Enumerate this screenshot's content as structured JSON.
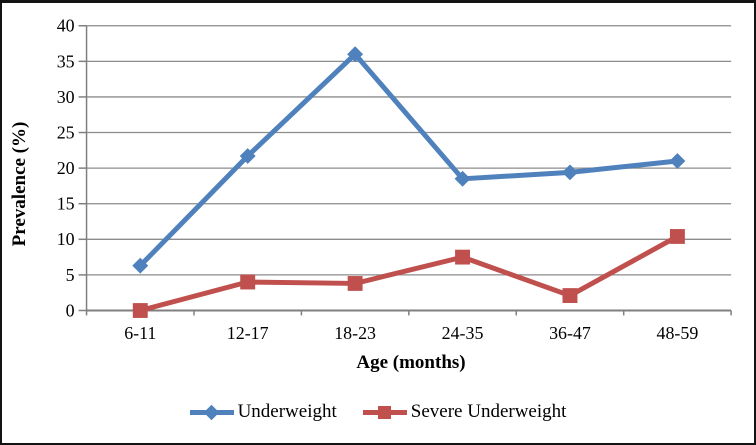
{
  "chart_data": {
    "type": "line",
    "title": "",
    "categories": [
      "6-11",
      "12-17",
      "18-23",
      "24-35",
      "36-47",
      "48-59"
    ],
    "series": [
      {
        "name": "Underweight",
        "marker": "diamond",
        "color": "#4F81BD",
        "values": [
          6.3,
          21.7,
          36.0,
          18.5,
          19.4,
          21.0
        ]
      },
      {
        "name": "Severe Underweight",
        "marker": "square",
        "color": "#C0504D",
        "values": [
          0.0,
          4.0,
          3.8,
          7.5,
          2.1,
          10.4
        ]
      }
    ],
    "xlabel": "Age (months)",
    "ylabel": "Prevalence (%)",
    "ylim": [
      0,
      40
    ],
    "ytick_step": 5,
    "yticks": [
      0,
      5,
      10,
      15,
      20,
      25,
      30,
      35,
      40
    ],
    "grid": true,
    "legend_position": "bottom",
    "gridline_color": "#8C8C8C",
    "axis_color": "#7F7F7F",
    "tick_label_color": "#000000",
    "background_color": "#FFFFFF",
    "border_color": "#131313"
  }
}
